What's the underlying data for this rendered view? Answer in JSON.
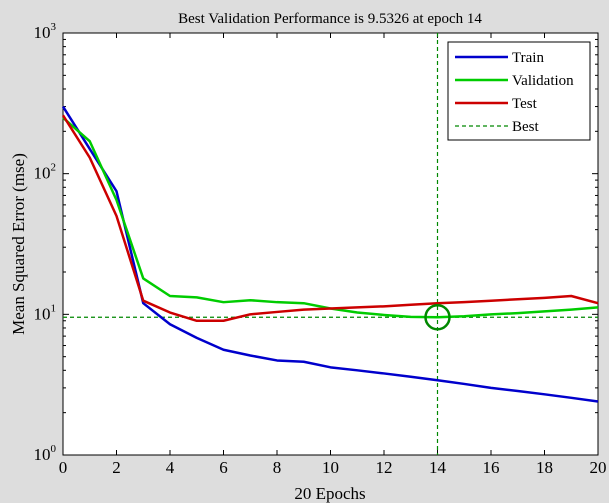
{
  "chart_data": {
    "type": "line",
    "title": "Best Validation Performance is 9.5326 at epoch 14",
    "xlabel": "20 Epochs",
    "ylabel": "Mean Squared Error  (mse)",
    "xlim": [
      0,
      20
    ],
    "ylim": [
      1,
      1000
    ],
    "yscale": "log",
    "x_ticks": [
      0,
      2,
      4,
      6,
      8,
      10,
      12,
      14,
      16,
      18,
      20
    ],
    "y_ticks": [
      {
        "value": 1,
        "base": "10",
        "exp": "0"
      },
      {
        "value": 10,
        "base": "10",
        "exp": "1"
      },
      {
        "value": 100,
        "base": "10",
        "exp": "2"
      },
      {
        "value": 1000,
        "base": "10",
        "exp": "3"
      }
    ],
    "grid": false,
    "legend_position": "top-right",
    "x": [
      0,
      1,
      2,
      3,
      4,
      5,
      6,
      7,
      8,
      9,
      10,
      11,
      12,
      13,
      14,
      15,
      16,
      17,
      18,
      19,
      20
    ],
    "series": [
      {
        "name": "Train",
        "color": "#0000cc",
        "values": [
          300,
          150,
          75,
          12,
          8.5,
          6.8,
          5.6,
          5.1,
          4.7,
          4.6,
          4.2,
          4.0,
          3.8,
          3.6,
          3.4,
          3.2,
          3.0,
          2.85,
          2.7,
          2.55,
          2.4
        ]
      },
      {
        "name": "Validation",
        "color": "#00cc00",
        "values": [
          250,
          170,
          65,
          18,
          13.5,
          13.2,
          12.2,
          12.6,
          12.2,
          12.0,
          11.0,
          10.3,
          9.9,
          9.6,
          9.53,
          9.7,
          10.0,
          10.2,
          10.5,
          10.8,
          11.2
        ]
      },
      {
        "name": "Test",
        "color": "#cc0000",
        "values": [
          260,
          130,
          50,
          12.5,
          10.3,
          9.0,
          9.0,
          10.0,
          10.4,
          10.8,
          11.0,
          11.2,
          11.4,
          11.7,
          12.0,
          12.2,
          12.5,
          12.8,
          13.1,
          13.5,
          12.0
        ]
      }
    ],
    "best": {
      "name": "Best",
      "color": "#008800",
      "epoch": 14,
      "value": 9.5326
    }
  }
}
